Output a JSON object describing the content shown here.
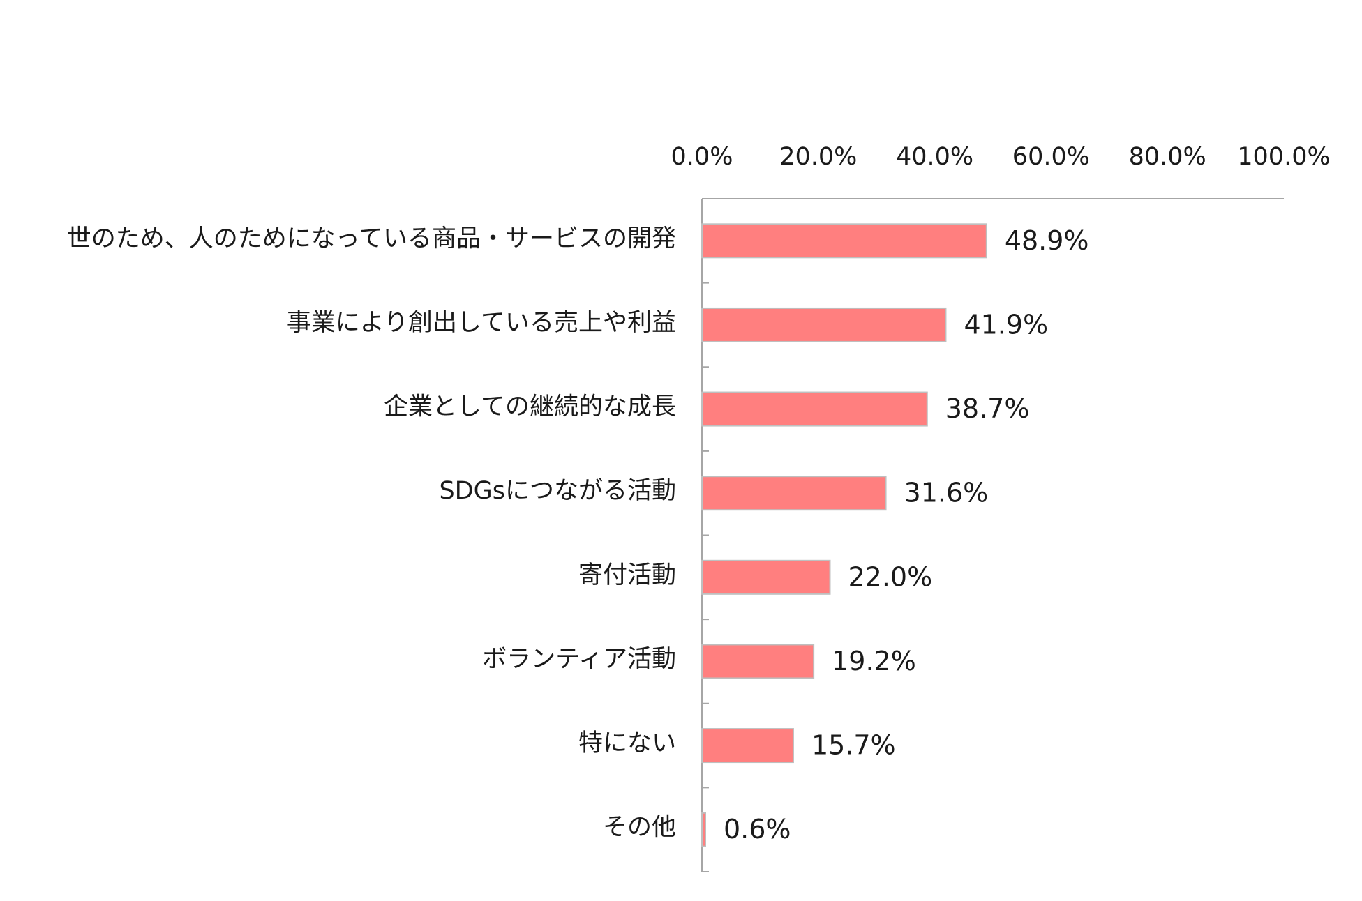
{
  "chart_data": {
    "type": "bar",
    "orientation": "horizontal",
    "categories": [
      "世のため、人のためになっている商品・サービスの開発",
      "事業により創出している売上や利益",
      "企業としての継続的な成長",
      "SDGsにつながる活動",
      "寄付活動",
      "ボランティア活動",
      "特にない",
      "その他"
    ],
    "values": [
      48.9,
      41.9,
      38.7,
      31.6,
      22.0,
      19.2,
      15.7,
      0.6
    ],
    "value_labels": [
      "48.9%",
      "41.9%",
      "38.7%",
      "31.6%",
      "22.0%",
      "19.2%",
      "15.7%",
      "0.6%"
    ],
    "color": "#ff7f7f",
    "xlim": [
      0,
      100
    ],
    "xticks": [
      {
        "value": 0,
        "label": "0.0%"
      },
      {
        "value": 20,
        "label": "20.0%"
      },
      {
        "value": 40,
        "label": "40.0%"
      },
      {
        "value": 60,
        "label": "60.0%"
      },
      {
        "value": 80,
        "label": "80.0%"
      },
      {
        "value": 100,
        "label": "100.0%"
      }
    ],
    "grid": false
  }
}
